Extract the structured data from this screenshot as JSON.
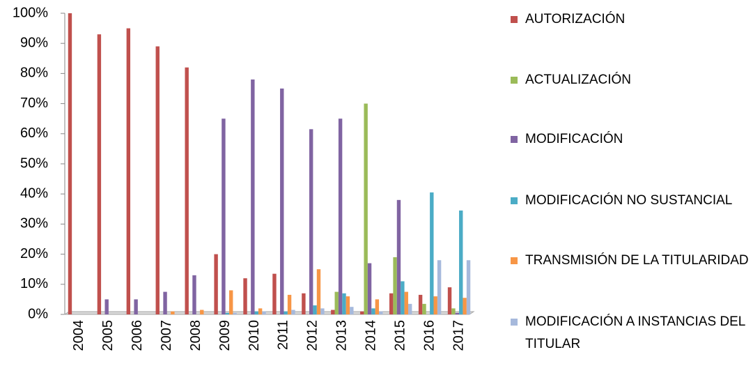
{
  "chart_data": {
    "type": "bar",
    "categories": [
      "2004",
      "2005",
      "2006",
      "2007",
      "2008",
      "2009",
      "2010",
      "2011",
      "2012",
      "2013",
      "2014",
      "2015",
      "2016",
      "2017"
    ],
    "series": [
      {
        "name": "AUTORIZACIÓN",
        "color": "#c0504d",
        "values": [
          100,
          93,
          95,
          89,
          82,
          20,
          12,
          13.5,
          7,
          1.5,
          1,
          7,
          6.5,
          9
        ]
      },
      {
        "name": "ACTUALIZACIÓN",
        "color": "#9bbb59",
        "values": [
          0,
          0,
          0,
          0,
          0,
          0,
          0,
          0,
          0,
          7.5,
          70,
          19,
          3.5,
          2
        ]
      },
      {
        "name": "MODIFICACIÓN",
        "color": "#8064a2",
        "values": [
          0,
          5,
          5,
          7.5,
          13,
          65,
          78,
          75,
          61.5,
          65,
          17,
          38,
          0,
          0.5
        ]
      },
      {
        "name": "MODIFICACIÓN NO SUSTANCIAL",
        "color": "#4bacc6",
        "values": [
          0,
          0,
          0,
          0,
          0,
          0.5,
          1,
          1,
          3,
          7,
          2,
          11,
          40.5,
          34.5
        ]
      },
      {
        "name": "TRANSMISIÓN DE LA TITULARIDAD",
        "color": "#f79646",
        "values": [
          0,
          0,
          0,
          1,
          1.5,
          8,
          2,
          6.5,
          15,
          6,
          5,
          7.5,
          6,
          5.5
        ]
      },
      {
        "name": "MODIFICACIÓN A INSTANCIAS DEL TITULAR",
        "color": "#a6b9dc",
        "values": [
          0,
          0,
          0,
          0,
          0,
          0.5,
          1,
          1.5,
          2,
          2.5,
          1,
          3.5,
          18,
          18
        ]
      }
    ],
    "ylim": [
      0,
      100
    ],
    "yticks": [
      {
        "value": 0,
        "label": "0%"
      },
      {
        "value": 10,
        "label": "10%"
      },
      {
        "value": 20,
        "label": "20%"
      },
      {
        "value": 30,
        "label": "30%"
      },
      {
        "value": 40,
        "label": "40%"
      },
      {
        "value": 50,
        "label": "50%"
      },
      {
        "value": 60,
        "label": "60%"
      },
      {
        "value": 70,
        "label": "70%"
      },
      {
        "value": 80,
        "label": "80%"
      },
      {
        "value": 90,
        "label": "90%"
      },
      {
        "value": 100,
        "label": "100%"
      }
    ],
    "legend": "right"
  }
}
